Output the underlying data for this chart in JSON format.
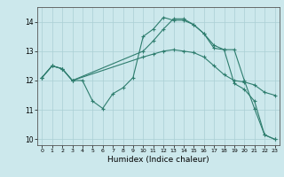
{
  "title": "",
  "xlabel": "Humidex (Indice chaleur)",
  "bg_color": "#cce8ec",
  "grid_color": "#aacfd4",
  "line_color": "#2e7d6e",
  "xlim": [
    -0.5,
    23.5
  ],
  "ylim": [
    9.8,
    14.5
  ],
  "yticks": [
    10,
    11,
    12,
    13,
    14
  ],
  "xticks": [
    0,
    1,
    2,
    3,
    4,
    5,
    6,
    7,
    8,
    9,
    10,
    11,
    12,
    13,
    14,
    15,
    16,
    17,
    18,
    19,
    20,
    21,
    22,
    23
  ],
  "series": [
    {
      "x": [
        0,
        1,
        2,
        3,
        4,
        5,
        6,
        7,
        8,
        9,
        10,
        11,
        12,
        13,
        14,
        15,
        16,
        17,
        18,
        19,
        20,
        21,
        22,
        23
      ],
      "y": [
        12.1,
        12.5,
        12.4,
        12.0,
        12.0,
        11.3,
        11.05,
        11.55,
        11.75,
        12.1,
        13.5,
        13.75,
        14.15,
        14.05,
        14.05,
        13.9,
        13.6,
        13.1,
        13.05,
        11.9,
        11.7,
        11.3,
        10.15,
        10.0
      ]
    },
    {
      "x": [
        0,
        1,
        2,
        3,
        10,
        11,
        12,
        13,
        14,
        15,
        16,
        17,
        18,
        19,
        20,
        21,
        22,
        23
      ],
      "y": [
        12.1,
        12.5,
        12.4,
        12.0,
        12.8,
        12.9,
        13.0,
        13.05,
        13.0,
        12.95,
        12.8,
        12.5,
        12.2,
        12.0,
        11.95,
        11.85,
        11.6,
        11.5
      ]
    },
    {
      "x": [
        0,
        1,
        2,
        3,
        10,
        11,
        12,
        13,
        14,
        15,
        16,
        17,
        18,
        19,
        20,
        21,
        22,
        23
      ],
      "y": [
        12.1,
        12.5,
        12.4,
        12.0,
        13.0,
        13.35,
        13.75,
        14.1,
        14.1,
        13.9,
        13.6,
        13.2,
        13.05,
        13.05,
        12.0,
        11.05,
        10.15,
        10.0
      ]
    }
  ]
}
